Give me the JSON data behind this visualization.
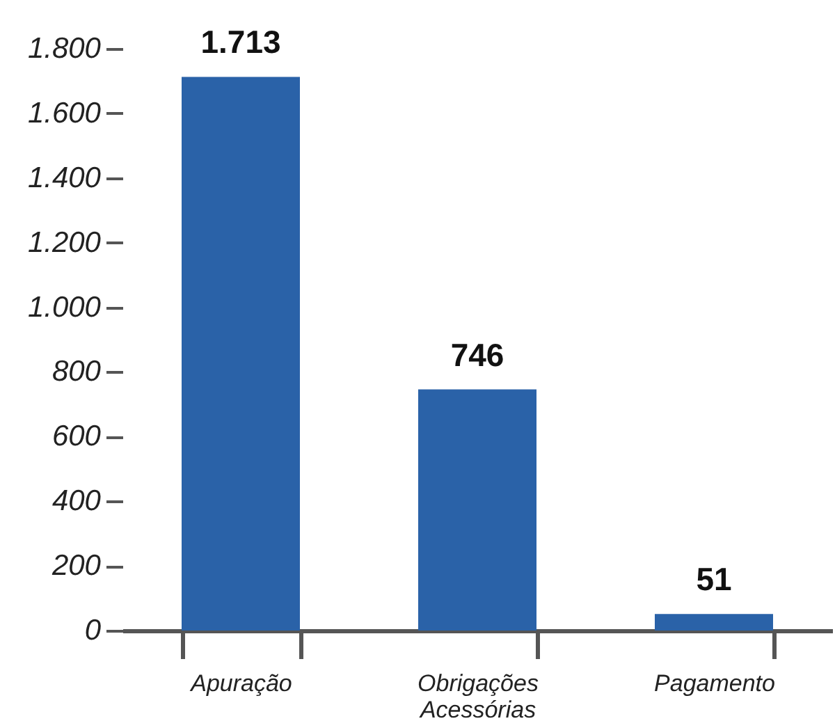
{
  "chart_data": {
    "type": "bar",
    "categories": [
      "Apuração",
      "Obrigações Acessórias",
      "Pagamento"
    ],
    "values": [
      1713,
      746,
      51
    ],
    "value_labels": [
      "1.713",
      "746",
      "51"
    ],
    "color": "#2a62a8",
    "ylim": [
      0,
      1800
    ],
    "yticks": [
      0,
      200,
      400,
      600,
      800,
      {
        "value": 1000,
        "label": "1.000"
      },
      {
        "value": 1200,
        "label": "1.200"
      },
      {
        "value": 1400,
        "label": "1.400"
      },
      {
        "value": 1600,
        "label": "1.600"
      },
      {
        "value": 1800,
        "label": "1.800"
      }
    ],
    "grid": false
  }
}
